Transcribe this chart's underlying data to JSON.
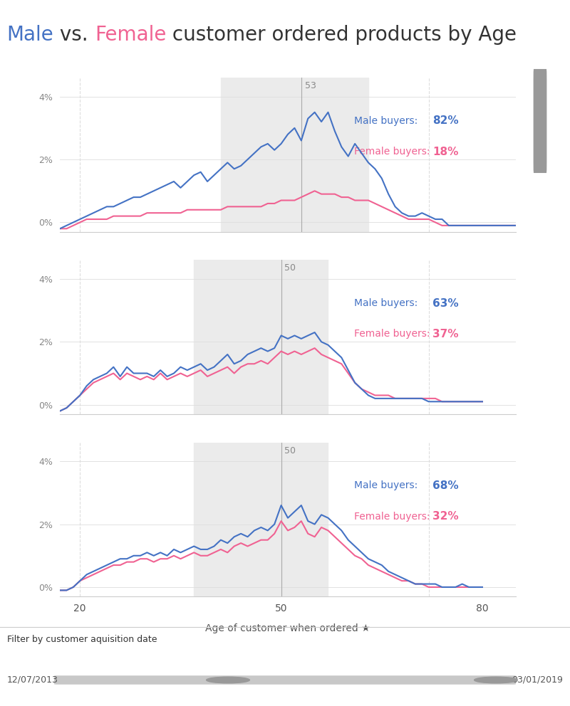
{
  "title_parts": [
    "Male",
    " vs. ",
    "Female",
    " customer ordered products by Age"
  ],
  "title_colors": [
    "#4472c4",
    "#333333",
    "#f06292",
    "#333333"
  ],
  "male_color": "#4472c4",
  "female_color": "#f06292",
  "bg_color": "#ffffff",
  "subplot_bg": "#ffffff",
  "shade_color": "#ebebeb",
  "xlabel": "Age of customer when ordered ★",
  "filter_label": "Filter by customer aquisition date",
  "filter_start": "12/07/2013",
  "filter_end": "03/01/2019",
  "panels": [
    {
      "male_pct": "82%",
      "female_pct": "18%",
      "vline": 53,
      "vline_label": "53",
      "shade_range": [
        41,
        63
      ],
      "ylim": [
        -0.003,
        0.046
      ],
      "yticks": [
        0.0,
        0.02,
        0.04
      ],
      "ytick_labels": [
        "0%",
        "2%",
        "4%"
      ],
      "male_x": [
        17,
        18,
        19,
        20,
        21,
        22,
        23,
        24,
        25,
        26,
        27,
        28,
        29,
        30,
        31,
        32,
        33,
        34,
        35,
        36,
        37,
        38,
        39,
        40,
        41,
        42,
        43,
        44,
        45,
        46,
        47,
        48,
        49,
        50,
        51,
        52,
        53,
        54,
        55,
        56,
        57,
        58,
        59,
        60,
        61,
        62,
        63,
        64,
        65,
        66,
        67,
        68,
        69,
        70,
        71,
        72,
        73,
        74,
        75,
        76,
        77,
        78,
        79,
        80,
        81,
        82,
        83,
        84,
        85
      ],
      "male_y": [
        -0.002,
        -0.001,
        0.0,
        0.001,
        0.002,
        0.003,
        0.004,
        0.005,
        0.005,
        0.006,
        0.007,
        0.008,
        0.008,
        0.009,
        0.01,
        0.011,
        0.012,
        0.013,
        0.011,
        0.013,
        0.015,
        0.016,
        0.013,
        0.015,
        0.017,
        0.019,
        0.017,
        0.018,
        0.02,
        0.022,
        0.024,
        0.025,
        0.023,
        0.025,
        0.028,
        0.03,
        0.026,
        0.033,
        0.035,
        0.032,
        0.035,
        0.029,
        0.024,
        0.021,
        0.025,
        0.022,
        0.019,
        0.017,
        0.014,
        0.009,
        0.005,
        0.003,
        0.002,
        0.002,
        0.003,
        0.002,
        0.001,
        0.001,
        -0.001,
        -0.001,
        -0.001,
        -0.001,
        -0.001,
        -0.001,
        -0.001,
        -0.001,
        -0.001,
        -0.001,
        -0.001
      ],
      "female_x": [
        17,
        18,
        19,
        20,
        21,
        22,
        23,
        24,
        25,
        26,
        27,
        28,
        29,
        30,
        31,
        32,
        33,
        34,
        35,
        36,
        37,
        38,
        39,
        40,
        41,
        42,
        43,
        44,
        45,
        46,
        47,
        48,
        49,
        50,
        51,
        52,
        53,
        54,
        55,
        56,
        57,
        58,
        59,
        60,
        61,
        62,
        63,
        64,
        65,
        66,
        67,
        68,
        69,
        70,
        71,
        72,
        73,
        74,
        75,
        76,
        77,
        78,
        79,
        80,
        81,
        82,
        83,
        84,
        85
      ],
      "female_y": [
        -0.002,
        -0.002,
        -0.001,
        0.0,
        0.001,
        0.001,
        0.001,
        0.001,
        0.002,
        0.002,
        0.002,
        0.002,
        0.002,
        0.003,
        0.003,
        0.003,
        0.003,
        0.003,
        0.003,
        0.004,
        0.004,
        0.004,
        0.004,
        0.004,
        0.004,
        0.005,
        0.005,
        0.005,
        0.005,
        0.005,
        0.005,
        0.006,
        0.006,
        0.007,
        0.007,
        0.007,
        0.008,
        0.009,
        0.01,
        0.009,
        0.009,
        0.009,
        0.008,
        0.008,
        0.007,
        0.007,
        0.007,
        0.006,
        0.005,
        0.004,
        0.003,
        0.002,
        0.001,
        0.001,
        0.001,
        0.001,
        0.0,
        -0.001,
        -0.001,
        -0.001,
        -0.001,
        -0.001,
        -0.001,
        -0.001,
        -0.001,
        -0.001,
        -0.001,
        -0.001,
        -0.001
      ]
    },
    {
      "male_pct": "63%",
      "female_pct": "37%",
      "vline": 50,
      "vline_label": "50",
      "shade_range": [
        37,
        57
      ],
      "ylim": [
        -0.003,
        0.046
      ],
      "yticks": [
        0.0,
        0.02,
        0.04
      ],
      "ytick_labels": [
        "0%",
        "2%",
        "4%"
      ],
      "male_x": [
        17,
        18,
        19,
        20,
        21,
        22,
        23,
        24,
        25,
        26,
        27,
        28,
        29,
        30,
        31,
        32,
        33,
        34,
        35,
        36,
        37,
        38,
        39,
        40,
        41,
        42,
        43,
        44,
        45,
        46,
        47,
        48,
        49,
        50,
        51,
        52,
        53,
        54,
        55,
        56,
        57,
        58,
        59,
        60,
        61,
        62,
        63,
        64,
        65,
        66,
        67,
        68,
        69,
        70,
        71,
        72,
        73,
        74,
        75,
        76,
        77,
        78,
        79,
        80
      ],
      "male_y": [
        -0.002,
        -0.001,
        0.001,
        0.003,
        0.006,
        0.008,
        0.009,
        0.01,
        0.012,
        0.009,
        0.012,
        0.01,
        0.01,
        0.01,
        0.009,
        0.011,
        0.009,
        0.01,
        0.012,
        0.011,
        0.012,
        0.013,
        0.011,
        0.012,
        0.014,
        0.016,
        0.013,
        0.014,
        0.016,
        0.017,
        0.018,
        0.017,
        0.018,
        0.022,
        0.021,
        0.022,
        0.021,
        0.022,
        0.023,
        0.02,
        0.019,
        0.017,
        0.015,
        0.011,
        0.007,
        0.005,
        0.003,
        0.002,
        0.002,
        0.002,
        0.002,
        0.002,
        0.002,
        0.002,
        0.002,
        0.001,
        0.001,
        0.001,
        0.001,
        0.001,
        0.001,
        0.001,
        0.001,
        0.001
      ],
      "female_x": [
        17,
        18,
        19,
        20,
        21,
        22,
        23,
        24,
        25,
        26,
        27,
        28,
        29,
        30,
        31,
        32,
        33,
        34,
        35,
        36,
        37,
        38,
        39,
        40,
        41,
        42,
        43,
        44,
        45,
        46,
        47,
        48,
        49,
        50,
        51,
        52,
        53,
        54,
        55,
        56,
        57,
        58,
        59,
        60,
        61,
        62,
        63,
        64,
        65,
        66,
        67,
        68,
        69,
        70,
        71,
        72,
        73,
        74,
        75,
        76,
        77,
        78,
        79,
        80
      ],
      "female_y": [
        -0.002,
        -0.001,
        0.001,
        0.003,
        0.005,
        0.007,
        0.008,
        0.009,
        0.01,
        0.008,
        0.01,
        0.009,
        0.008,
        0.009,
        0.008,
        0.01,
        0.008,
        0.009,
        0.01,
        0.009,
        0.01,
        0.011,
        0.009,
        0.01,
        0.011,
        0.012,
        0.01,
        0.012,
        0.013,
        0.013,
        0.014,
        0.013,
        0.015,
        0.017,
        0.016,
        0.017,
        0.016,
        0.017,
        0.018,
        0.016,
        0.015,
        0.014,
        0.013,
        0.01,
        0.007,
        0.005,
        0.004,
        0.003,
        0.003,
        0.003,
        0.002,
        0.002,
        0.002,
        0.002,
        0.002,
        0.002,
        0.002,
        0.001,
        0.001,
        0.001,
        0.001,
        0.001,
        0.001,
        0.001
      ]
    },
    {
      "male_pct": "68%",
      "female_pct": "32%",
      "vline": 50,
      "vline_label": "50",
      "shade_range": [
        37,
        57
      ],
      "ylim": [
        -0.003,
        0.046
      ],
      "yticks": [
        0.0,
        0.02,
        0.04
      ],
      "ytick_labels": [
        "0%",
        "2%",
        "4%"
      ],
      "male_x": [
        17,
        18,
        19,
        20,
        21,
        22,
        23,
        24,
        25,
        26,
        27,
        28,
        29,
        30,
        31,
        32,
        33,
        34,
        35,
        36,
        37,
        38,
        39,
        40,
        41,
        42,
        43,
        44,
        45,
        46,
        47,
        48,
        49,
        50,
        51,
        52,
        53,
        54,
        55,
        56,
        57,
        58,
        59,
        60,
        61,
        62,
        63,
        64,
        65,
        66,
        67,
        68,
        69,
        70,
        71,
        72,
        73,
        74,
        75,
        76,
        77,
        78,
        79,
        80
      ],
      "male_y": [
        -0.001,
        -0.001,
        0.0,
        0.002,
        0.004,
        0.005,
        0.006,
        0.007,
        0.008,
        0.009,
        0.009,
        0.01,
        0.01,
        0.011,
        0.01,
        0.011,
        0.01,
        0.012,
        0.011,
        0.012,
        0.013,
        0.012,
        0.012,
        0.013,
        0.015,
        0.014,
        0.016,
        0.017,
        0.016,
        0.018,
        0.019,
        0.018,
        0.02,
        0.026,
        0.022,
        0.024,
        0.026,
        0.021,
        0.02,
        0.023,
        0.022,
        0.02,
        0.018,
        0.015,
        0.013,
        0.011,
        0.009,
        0.008,
        0.007,
        0.005,
        0.004,
        0.003,
        0.002,
        0.001,
        0.001,
        0.001,
        0.001,
        0.0,
        0.0,
        0.0,
        0.001,
        0.0,
        0.0,
        0.0
      ],
      "female_x": [
        17,
        18,
        19,
        20,
        21,
        22,
        23,
        24,
        25,
        26,
        27,
        28,
        29,
        30,
        31,
        32,
        33,
        34,
        35,
        36,
        37,
        38,
        39,
        40,
        41,
        42,
        43,
        44,
        45,
        46,
        47,
        48,
        49,
        50,
        51,
        52,
        53,
        54,
        55,
        56,
        57,
        58,
        59,
        60,
        61,
        62,
        63,
        64,
        65,
        66,
        67,
        68,
        69,
        70,
        71,
        72,
        73,
        74,
        75,
        76,
        77,
        78,
        79,
        80
      ],
      "female_y": [
        -0.001,
        -0.001,
        0.0,
        0.002,
        0.003,
        0.004,
        0.005,
        0.006,
        0.007,
        0.007,
        0.008,
        0.008,
        0.009,
        0.009,
        0.008,
        0.009,
        0.009,
        0.01,
        0.009,
        0.01,
        0.011,
        0.01,
        0.01,
        0.011,
        0.012,
        0.011,
        0.013,
        0.014,
        0.013,
        0.014,
        0.015,
        0.015,
        0.017,
        0.021,
        0.018,
        0.019,
        0.021,
        0.017,
        0.016,
        0.019,
        0.018,
        0.016,
        0.014,
        0.012,
        0.01,
        0.009,
        0.007,
        0.006,
        0.005,
        0.004,
        0.003,
        0.002,
        0.002,
        0.001,
        0.001,
        0.0,
        0.0,
        0.0,
        0.0,
        0.0,
        0.0,
        0.0,
        0.0,
        0.0
      ]
    }
  ],
  "xlim": [
    17,
    85
  ],
  "xticks": [
    20,
    50,
    80
  ],
  "xtick_labels": [
    "20",
    "50",
    "80"
  ],
  "dashed_vline_x": 20,
  "filter_bar_color": "#c8c8c8",
  "filter_bg": "#f5f5f5",
  "scrollbar_color": "#bbbbbb",
  "scrollbar_thumb_color": "#999999"
}
